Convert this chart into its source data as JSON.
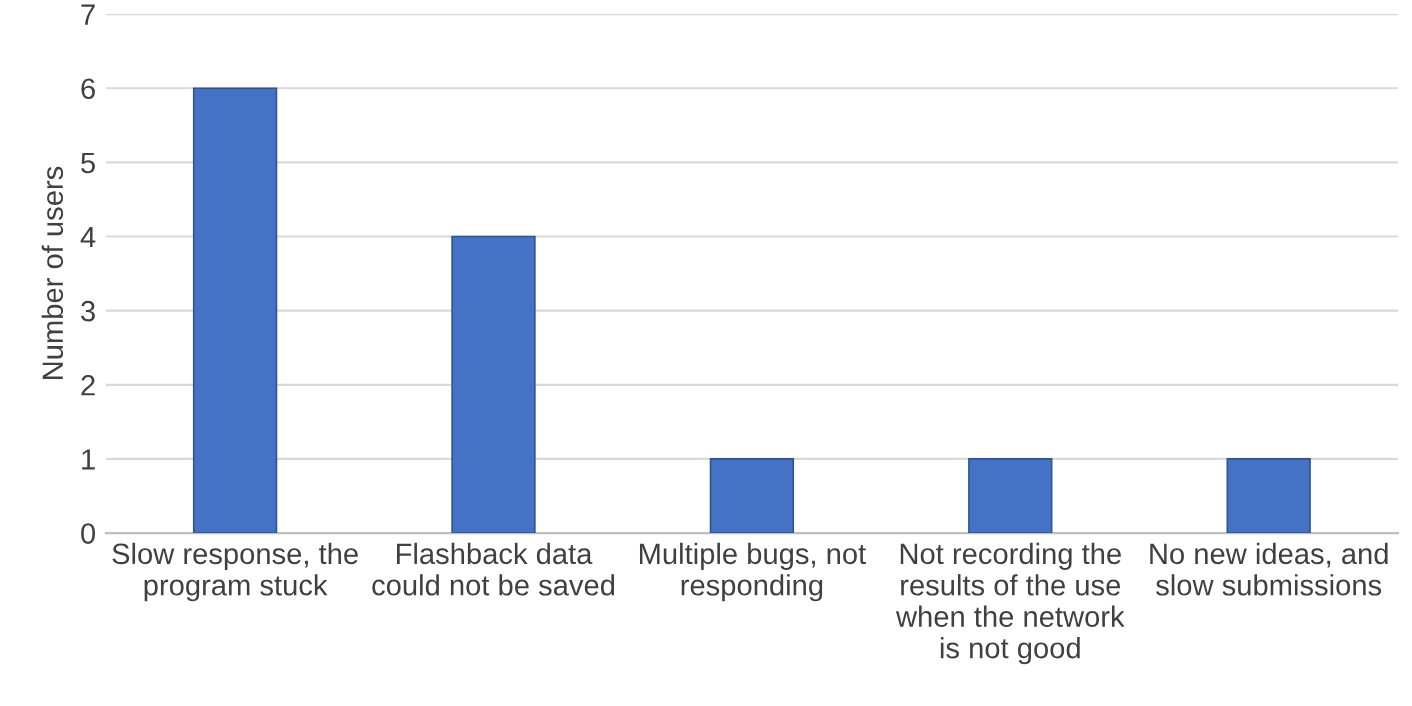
{
  "chart_data": {
    "type": "bar",
    "categories": [
      "Slow response, the\nprogram stuck",
      "Flashback data\ncould not be saved",
      "Multiple bugs, not\nresponding",
      "Not recording the\nresults of the use\nwhen the network\nis not good",
      "No new ideas, and\nslow submissions"
    ],
    "values": [
      6,
      4,
      1,
      1,
      1
    ],
    "color": "#4472c4",
    "ylabel": "Number of users",
    "ylim": [
      0,
      7
    ],
    "yticks": [
      0,
      1,
      2,
      3,
      4,
      5,
      6,
      7
    ],
    "grid": "y",
    "legend": false
  }
}
